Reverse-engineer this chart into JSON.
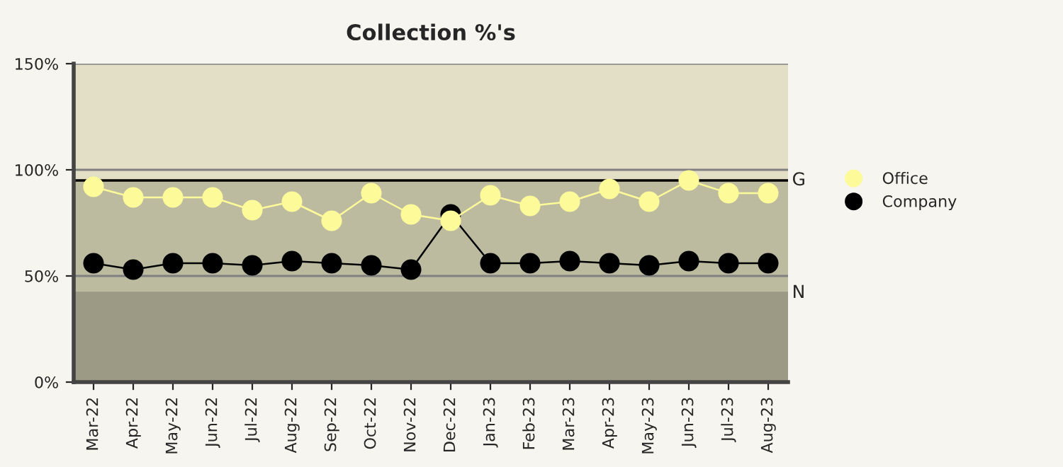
{
  "chart_data": {
    "type": "line",
    "title": "Collection %'s",
    "categories": [
      "Mar-22",
      "Apr-22",
      "May-22",
      "Jun-22",
      "Jul-22",
      "Aug-22",
      "Sep-22",
      "Oct-22",
      "Nov-22",
      "Dec-22",
      "Jan-23",
      "Feb-23",
      "Mar-23",
      "Apr-23",
      "May-23",
      "Jun-23",
      "Jul-23",
      "Aug-23"
    ],
    "series": [
      {
        "name": "Office",
        "color": "#fdfa9a",
        "values": [
          92,
          87,
          87,
          87,
          81,
          85,
          76,
          89,
          79,
          76,
          88,
          83,
          85,
          91,
          85,
          95,
          89,
          89
        ]
      },
      {
        "name": "Company",
        "color": "#000000",
        "values": [
          56,
          53,
          56,
          56,
          55,
          57,
          56,
          55,
          53,
          79,
          56,
          56,
          57,
          56,
          55,
          57,
          56,
          56
        ]
      }
    ],
    "ylim": [
      0,
      150
    ],
    "yticks": [
      {
        "value": 0,
        "label": "0%"
      },
      {
        "value": 50,
        "label": "50%"
      },
      {
        "value": 100,
        "label": "100%"
      },
      {
        "value": 150,
        "label": "150%"
      }
    ],
    "bands": [
      {
        "axis": "y",
        "from": 0,
        "to": 42,
        "color": "#9c9a84"
      },
      {
        "axis": "y",
        "from": 42,
        "to": 95,
        "color": "#bdbb9f"
      },
      {
        "axis": "y",
        "from": 95,
        "to": 150,
        "color": "#e3dec6"
      }
    ],
    "ref_lines": [
      {
        "axis": "y",
        "value": 95,
        "label": "G",
        "color": "#000000"
      },
      {
        "axis": "y",
        "value": 42,
        "label": "N",
        "color": "#9c9a84"
      }
    ],
    "grid": "y",
    "legend": "right",
    "marker": "circle"
  }
}
